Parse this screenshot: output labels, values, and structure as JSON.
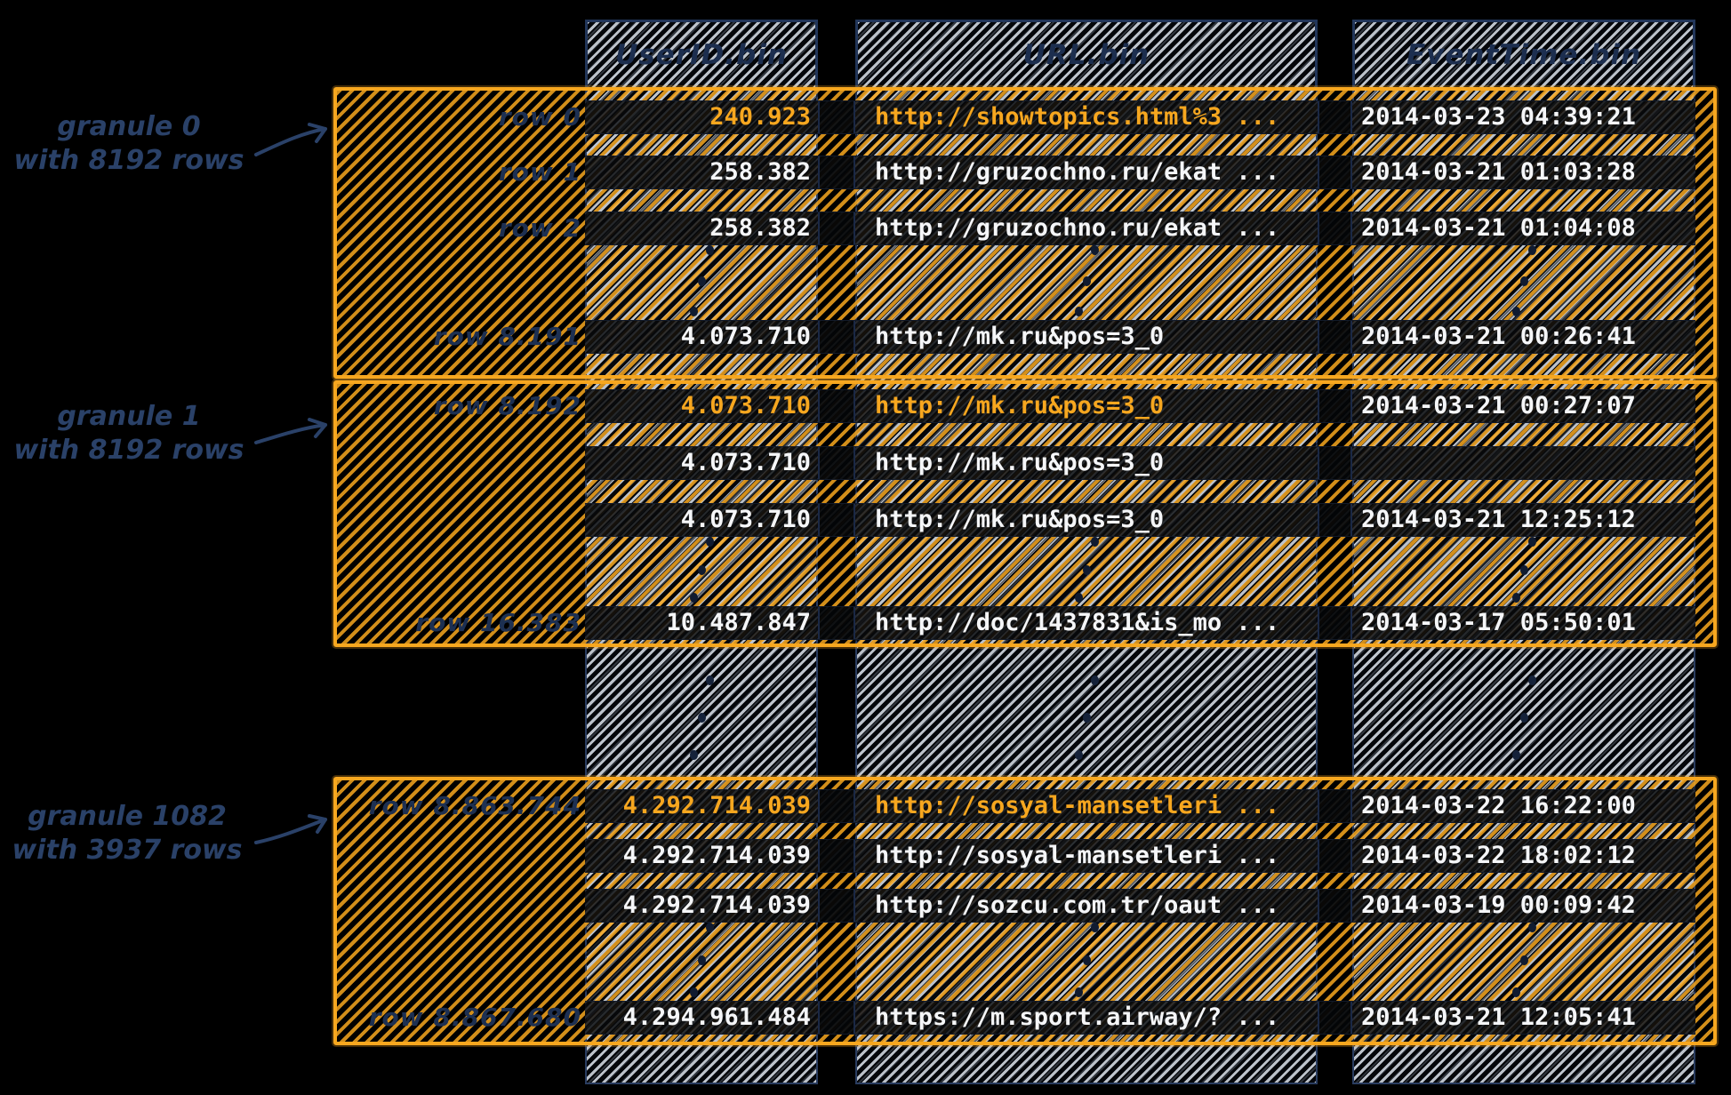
{
  "colors": {
    "accent_orange": "#F7A71F",
    "ink_navy": "#22365A",
    "hatch_light": "#D5DCE5",
    "row_text": "#F5F6F8",
    "background": "#000000"
  },
  "columns": [
    {
      "label": "UserID.bin"
    },
    {
      "label": "URL.bin"
    },
    {
      "label": "EventTime.bin"
    }
  ],
  "granules": [
    {
      "annotation": {
        "line1": "granule 0",
        "line2": "with 8192 rows"
      },
      "rows": [
        {
          "label": "row 0",
          "user_id": "240.923",
          "url": "http://showtopics.html%3 ...",
          "event_time": "2014-03-23 04:39:21",
          "highlight": true
        },
        {
          "label": "row 1",
          "user_id": "258.382",
          "url": "http://gruzochno.ru/ekat ...",
          "event_time": "2014-03-21 01:03:28",
          "highlight": false
        },
        {
          "label": "row 2",
          "user_id": "258.382",
          "url": "http://gruzochno.ru/ekat ...",
          "event_time": "2014-03-21 01:04:08",
          "highlight": false
        },
        {
          "label": "row 8.191",
          "user_id": "4.073.710",
          "url": "http://mk.ru&pos=3_0",
          "event_time": "2014-03-21 00:26:41",
          "highlight": false
        }
      ]
    },
    {
      "annotation": {
        "line1": "granule 1",
        "line2": "with 8192 rows"
      },
      "rows": [
        {
          "label": "row 8.192",
          "user_id": "4.073.710",
          "url": "http://mk.ru&pos=3_0",
          "event_time": "2014-03-21 00:27:07",
          "highlight": true
        },
        {
          "label": "",
          "user_id": "4.073.710",
          "url": "http://mk.ru&pos=3_0",
          "event_time": "",
          "highlight": false
        },
        {
          "label": "",
          "user_id": "4.073.710",
          "url": "http://mk.ru&pos=3_0",
          "event_time": "2014-03-21 12:25:12",
          "highlight": false
        },
        {
          "label": "row 16.383",
          "user_id": "10.487.847",
          "url": "http://doc/1437831&is_mo ...",
          "event_time": "2014-03-17 05:50:01",
          "highlight": false
        }
      ]
    },
    {
      "annotation": {
        "line1": "granule 1082",
        "line2": "with 3937 rows"
      },
      "rows": [
        {
          "label": "row 8.863.744",
          "user_id": "4.292.714.039",
          "url": "http://sosyal-mansetleri ...",
          "event_time": "2014-03-22 16:22:00",
          "highlight": true
        },
        {
          "label": "",
          "user_id": "4.292.714.039",
          "url": "http://sosyal-mansetleri ...",
          "event_time": "2014-03-22 18:02:12",
          "highlight": false
        },
        {
          "label": "",
          "user_id": "4.292.714.039",
          "url": "http://sozcu.com.tr/oaut ...",
          "event_time": "2014-03-19 00:09:42",
          "highlight": false
        },
        {
          "label": "row 8.867.680",
          "user_id": "4.294.961.484",
          "url": "https://m.sport.airway/? ...",
          "event_time": "2014-03-21 12:05:41",
          "highlight": false
        }
      ]
    }
  ]
}
